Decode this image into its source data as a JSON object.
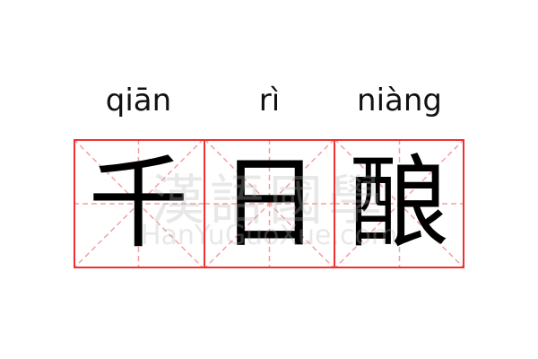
{
  "colors": {
    "grid_border": "#f03030",
    "guide_lines": "#f5a0a0",
    "text": "#000000"
  },
  "entries": [
    {
      "pinyin": "qiān",
      "hanzi": "千"
    },
    {
      "pinyin": "rì",
      "hanzi": "日"
    },
    {
      "pinyin": "niàng",
      "hanzi": "酿"
    }
  ],
  "watermark": {
    "chinese": "漢語國學",
    "latin": "HanYuGuoXue.com"
  }
}
